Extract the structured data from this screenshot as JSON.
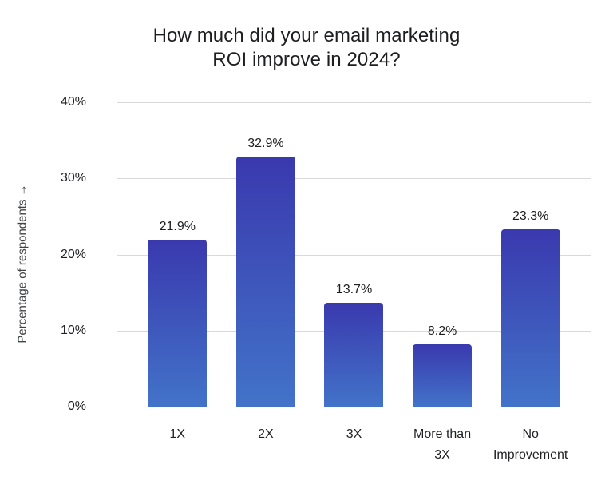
{
  "chart_data": {
    "type": "bar",
    "title": "How much did your email marketing\nROI improve in 2024?",
    "categories": [
      "1X",
      "2X",
      "3X",
      "More than 3X",
      "No Improvement"
    ],
    "values": [
      21.9,
      32.9,
      13.7,
      8.2,
      23.3
    ],
    "value_labels": [
      "21.9%",
      "32.9%",
      "13.7%",
      "8.2%",
      "23.3%"
    ],
    "xlabel": "",
    "ylabel": "Percentage of respondents →",
    "yticks": [
      "40%",
      "30%",
      "20%",
      "10%",
      "0%"
    ],
    "ylim": [
      0,
      40
    ],
    "grid": true,
    "legend": "none",
    "colors": {
      "bar_gradient_top": "#3a39ae",
      "bar_gradient_bottom": "#4273c9",
      "gridline": "#d9d9d9",
      "title_text": "#1d1e20",
      "label_text": "#1c1d1f",
      "background": "#ffffff"
    }
  }
}
